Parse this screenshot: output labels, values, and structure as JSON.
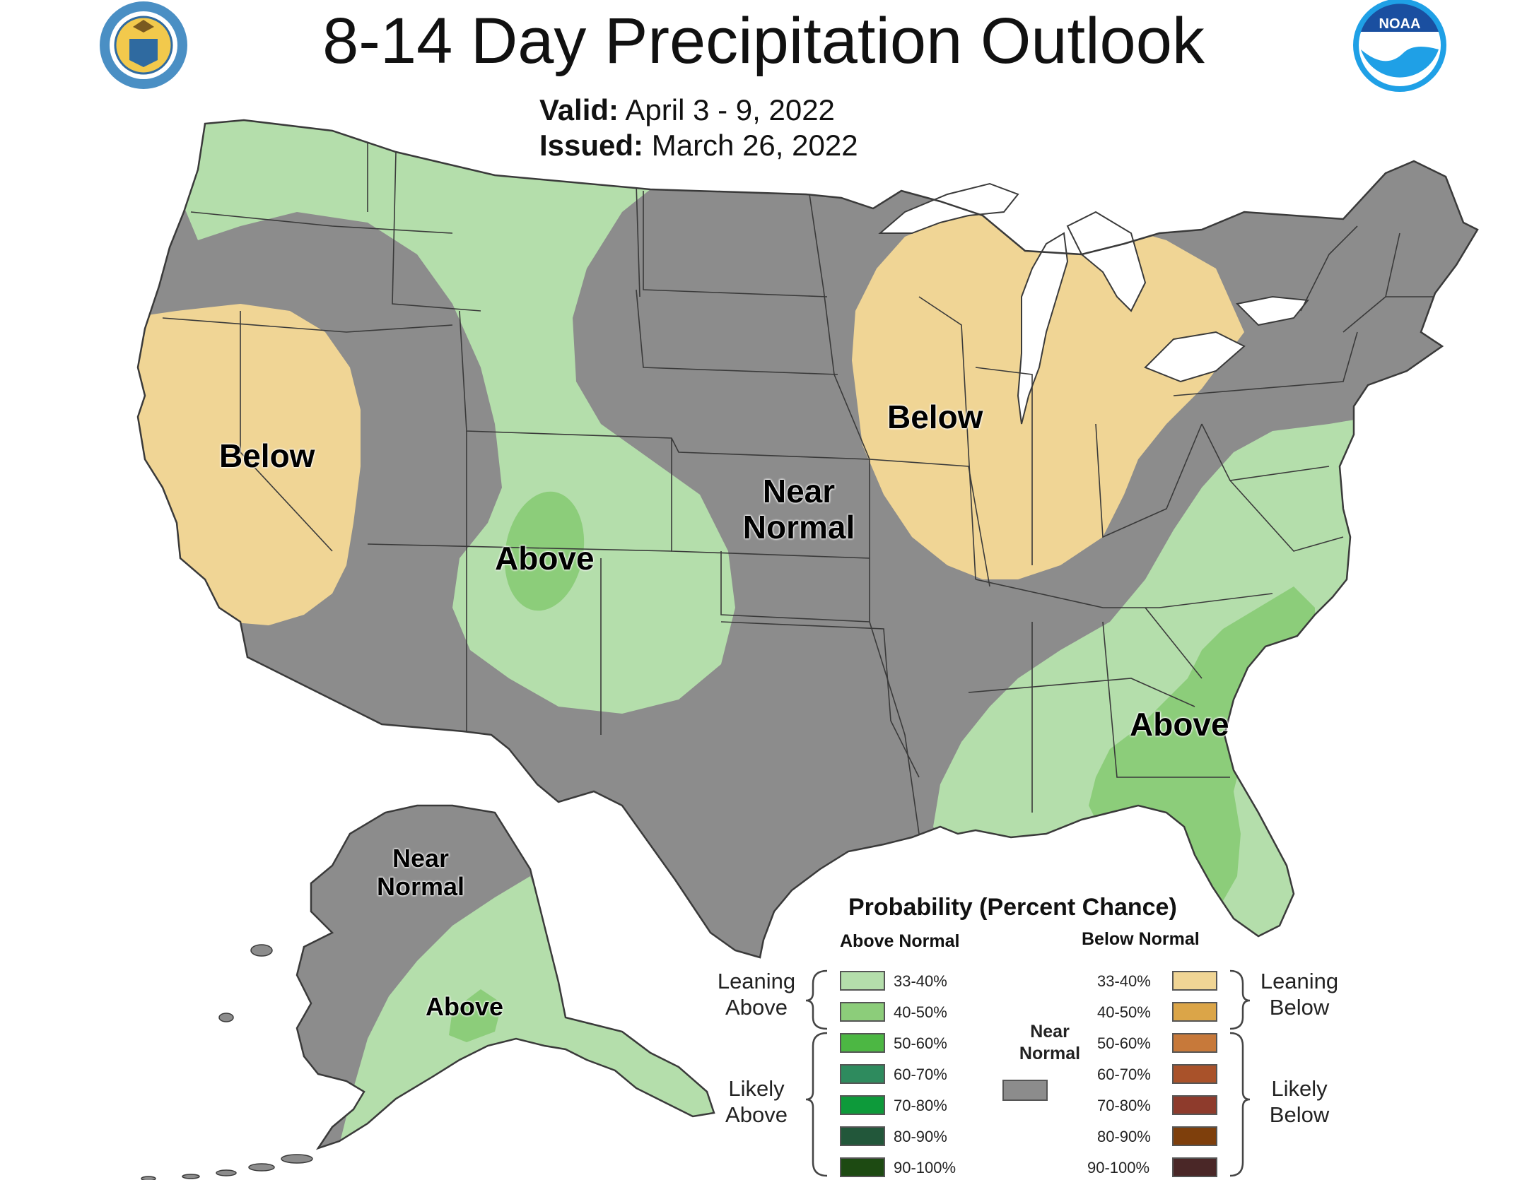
{
  "header": {
    "title": "8-14 Day Precipitation Outlook",
    "valid_label": "Valid:",
    "valid_value": "April 3 - 9, 2022",
    "issued_label": "Issued:",
    "issued_value": "March 26, 2022"
  },
  "logos": {
    "left": "department-of-commerce-seal",
    "right": "noaa-logo",
    "right_text": "NOAA"
  },
  "map_labels": {
    "west_below": "Below",
    "rockies_above": "Above",
    "plains_near_normal_1": "Near",
    "plains_near_normal_2": "Normal",
    "midwest_below": "Below",
    "southeast_above": "Above",
    "alaska_near_normal_1": "Near",
    "alaska_near_normal_2": "Normal",
    "alaska_above": "Above"
  },
  "legend": {
    "title": "Probability (Percent Chance)",
    "above_header": "Above Normal",
    "below_header": "Below Normal",
    "leaning_above_1": "Leaning",
    "leaning_above_2": "Above",
    "likely_above_1": "Likely",
    "likely_above_2": "Above",
    "leaning_below_1": "Leaning",
    "leaning_below_2": "Below",
    "likely_below_1": "Likely",
    "likely_below_2": "Below",
    "near_normal_1": "Near",
    "near_normal_2": "Normal",
    "above_levels": [
      {
        "label": "33-40%",
        "color": "#b4deab"
      },
      {
        "label": "40-50%",
        "color": "#8ccd7a"
      },
      {
        "label": "50-60%",
        "color": "#4cb743"
      },
      {
        "label": "60-70%",
        "color": "#2e8b5e"
      },
      {
        "label": "70-80%",
        "color": "#0d9a3a"
      },
      {
        "label": "80-90%",
        "color": "#22573a"
      },
      {
        "label": "90-100%",
        "color": "#1d4a12"
      }
    ],
    "below_levels": [
      {
        "label": "33-40%",
        "color": "#f0d595"
      },
      {
        "label": "40-50%",
        "color": "#dba548"
      },
      {
        "label": "50-60%",
        "color": "#c7793a"
      },
      {
        "label": "60-70%",
        "color": "#a9522a"
      },
      {
        "label": "70-80%",
        "color": "#8e3b2c"
      },
      {
        "label": "80-90%",
        "color": "#7e3f0c"
      },
      {
        "label": "90-100%",
        "color": "#4a2727"
      }
    ],
    "near_normal_color": "#8c8c8c"
  },
  "colors": {
    "near_normal": "#8c8c8c",
    "above_33_40": "#b4deab",
    "above_40_50": "#8ccd7a",
    "below_33_40": "#f0d595",
    "water": "#ffffff",
    "borders": "#3a3a3a"
  }
}
